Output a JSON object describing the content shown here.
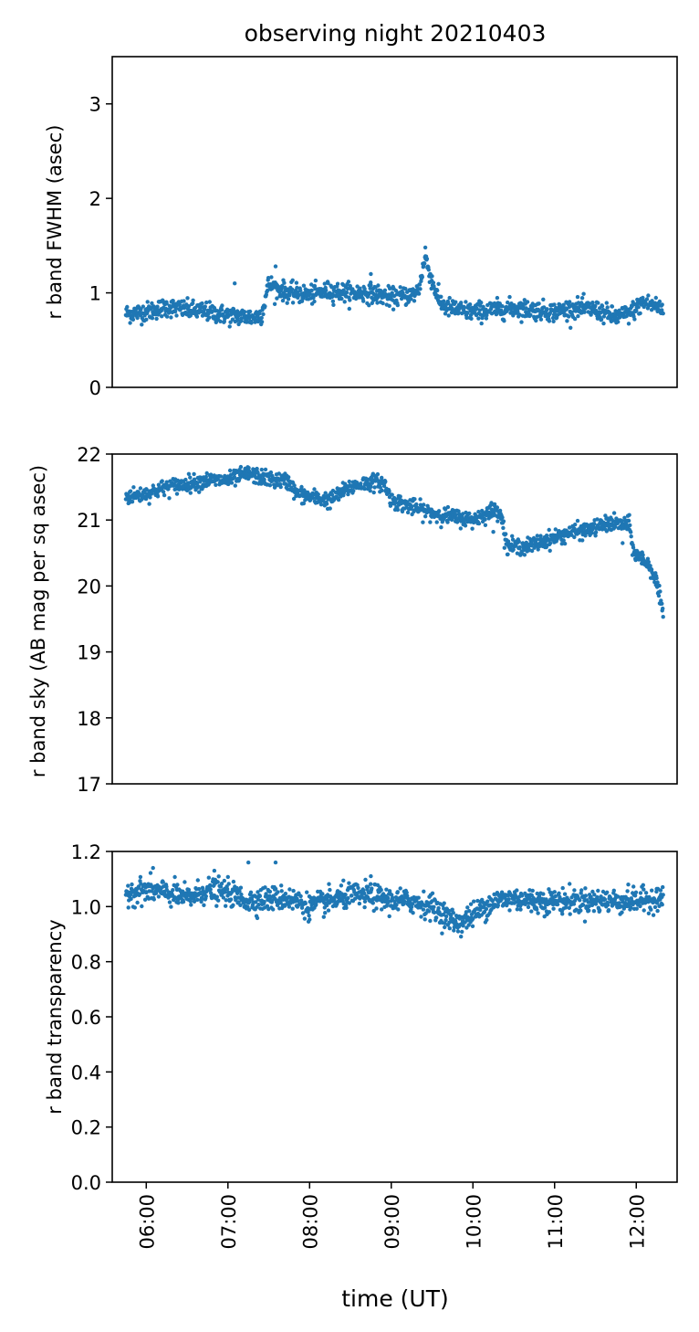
{
  "figure": {
    "title": "observing night 20210403",
    "xlabel": "time (UT)",
    "marker_color": "#1f77b4",
    "xticks": [
      {
        "t": 6,
        "label": "06:00"
      },
      {
        "t": 7,
        "label": "07:00"
      },
      {
        "t": 8,
        "label": "08:00"
      },
      {
        "t": 9,
        "label": "09:00"
      },
      {
        "t": 10,
        "label": "10:00"
      },
      {
        "t": 11,
        "label": "11:00"
      },
      {
        "t": 12,
        "label": "12:00"
      }
    ]
  },
  "chart_data": [
    {
      "type": "scatter",
      "id": "fwhm",
      "title": "observing night 20210403",
      "xlabel": "",
      "ylabel": "r band FWHM (asec)",
      "xlim": [
        "05:35",
        "12:30"
      ],
      "ylim": [
        0,
        3.5
      ],
      "yticks": [
        {
          "v": 0,
          "label": "0"
        },
        {
          "v": 1,
          "label": "1"
        },
        {
          "v": 2,
          "label": "2"
        },
        {
          "v": 3,
          "label": "3"
        }
      ],
      "show_x_ticks": false,
      "grid": false,
      "series_trend": {
        "x": [
          "05:45",
          "06:00",
          "06:15",
          "06:30",
          "06:45",
          "07:00",
          "07:10",
          "07:20",
          "07:25",
          "07:30",
          "07:35",
          "07:45",
          "08:00",
          "08:15",
          "08:30",
          "08:45",
          "09:00",
          "09:15",
          "09:20",
          "09:25",
          "09:30",
          "09:35",
          "09:40",
          "09:50",
          "10:00",
          "10:15",
          "10:30",
          "10:45",
          "11:00",
          "11:15",
          "11:30",
          "11:45",
          "11:55",
          "12:05",
          "12:15",
          "12:20"
        ],
        "y": [
          0.78,
          0.8,
          0.85,
          0.82,
          0.8,
          0.76,
          0.75,
          0.74,
          0.78,
          1.1,
          1.05,
          1.0,
          0.98,
          1.02,
          1.0,
          1.0,
          0.95,
          0.98,
          1.02,
          1.38,
          1.12,
          0.92,
          0.85,
          0.82,
          0.8,
          0.82,
          0.84,
          0.82,
          0.8,
          0.84,
          0.82,
          0.74,
          0.78,
          0.9,
          0.86,
          0.82
        ]
      },
      "spread": 0.05,
      "outliers": [
        {
          "x": "07:05",
          "y": 1.1
        },
        {
          "x": "07:35",
          "y": 1.28
        },
        {
          "x": "09:25",
          "y": 1.48
        },
        {
          "x": "08:45",
          "y": 1.2
        }
      ]
    },
    {
      "type": "scatter",
      "id": "sky",
      "xlabel": "",
      "ylabel": "r band sky (AB mag per sq asec)",
      "xlim": [
        "05:35",
        "12:30"
      ],
      "ylim": [
        17,
        22
      ],
      "yticks": [
        {
          "v": 17,
          "label": "17"
        },
        {
          "v": 18,
          "label": "18"
        },
        {
          "v": 19,
          "label": "19"
        },
        {
          "v": 20,
          "label": "20"
        },
        {
          "v": 21,
          "label": "21"
        },
        {
          "v": 22,
          "label": "22"
        }
      ],
      "show_x_ticks": false,
      "grid": false,
      "series_trend": {
        "x": [
          "05:45",
          "06:00",
          "06:15",
          "06:30",
          "06:45",
          "07:00",
          "07:15",
          "07:30",
          "07:45",
          "07:50",
          "08:00",
          "08:15",
          "08:30",
          "08:45",
          "08:55",
          "09:00",
          "09:15",
          "09:30",
          "09:45",
          "10:00",
          "10:15",
          "10:20",
          "10:25",
          "10:40",
          "10:55",
          "11:10",
          "11:25",
          "11:40",
          "11:55",
          "11:58",
          "12:05",
          "12:10",
          "12:15",
          "12:20"
        ],
        "y": [
          21.35,
          21.4,
          21.5,
          21.55,
          21.6,
          21.6,
          21.7,
          21.62,
          21.58,
          21.4,
          21.35,
          21.3,
          21.5,
          21.58,
          21.55,
          21.3,
          21.2,
          21.1,
          21.05,
          21.0,
          21.15,
          21.15,
          20.6,
          20.6,
          20.7,
          20.8,
          20.85,
          20.95,
          20.92,
          20.5,
          20.4,
          20.3,
          20.05,
          19.5
        ]
      },
      "spread": 0.06,
      "outliers": [
        {
          "x": "10:15",
          "y": 20.82
        },
        {
          "x": "11:50",
          "y": 20.65
        }
      ]
    },
    {
      "type": "scatter",
      "id": "transparency",
      "xlabel": "time (UT)",
      "ylabel": "r band transparency",
      "xlim": [
        "05:35",
        "12:30"
      ],
      "ylim": [
        0.0,
        1.2
      ],
      "yticks": [
        {
          "v": 0.0,
          "label": "0.0"
        },
        {
          "v": 0.2,
          "label": "0.2"
        },
        {
          "v": 0.4,
          "label": "0.4"
        },
        {
          "v": 0.6,
          "label": "0.6"
        },
        {
          "v": 0.8,
          "label": "0.8"
        },
        {
          "v": 1.0,
          "label": "1.0"
        },
        {
          "v": 1.2,
          "label": "1.2"
        }
      ],
      "show_x_ticks": true,
      "grid": false,
      "series_trend": {
        "x": [
          "05:45",
          "06:00",
          "06:15",
          "06:30",
          "06:45",
          "07:00",
          "07:15",
          "07:30",
          "07:45",
          "08:00",
          "08:15",
          "08:30",
          "08:45",
          "09:00",
          "09:15",
          "09:30",
          "09:45",
          "09:50",
          "10:00",
          "10:15",
          "10:30",
          "10:45",
          "11:00",
          "11:15",
          "11:30",
          "11:45",
          "12:00",
          "12:15",
          "12:20"
        ],
        "y": [
          1.05,
          1.06,
          1.05,
          1.03,
          1.06,
          1.05,
          1.02,
          1.03,
          1.03,
          1.0,
          1.02,
          1.04,
          1.04,
          1.02,
          1.02,
          1.0,
          0.95,
          0.94,
          0.97,
          1.02,
          1.03,
          1.02,
          1.02,
          1.02,
          1.02,
          1.02,
          1.02,
          1.03,
          1.03
        ]
      },
      "spread": 0.022,
      "outliers": [
        {
          "x": "06:05",
          "y": 1.14
        },
        {
          "x": "06:50",
          "y": 1.13
        },
        {
          "x": "07:15",
          "y": 1.16
        },
        {
          "x": "07:35",
          "y": 1.16
        },
        {
          "x": "08:45",
          "y": 1.11
        }
      ]
    }
  ]
}
